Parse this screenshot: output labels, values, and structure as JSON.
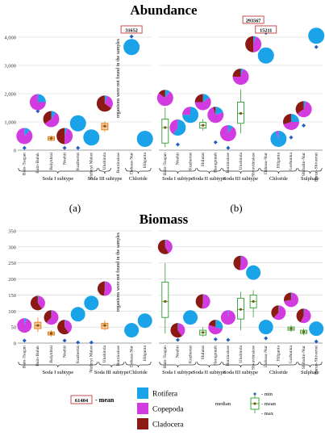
{
  "titles": {
    "top": "Abundance",
    "bottom": "Biomass"
  },
  "panel_labels": {
    "a": "(a)",
    "b": "(b)"
  },
  "note_not_found": "organisms were not found in the samples",
  "legend": {
    "mean_box_value": "61404",
    "mean_label": "- mean",
    "taxa": [
      {
        "name": "Rotifera",
        "color": "#1aa3e8"
      },
      {
        "name": "Copepoda",
        "color": "#d13be0"
      },
      {
        "name": "Cladocera",
        "color": "#8c1a14"
      }
    ],
    "box_legend": {
      "median": "median",
      "min": "- min",
      "mean": "- mean",
      "max": "- max"
    }
  },
  "colors": {
    "rotifera": "#1aa3e8",
    "copepoda": "#d13be0",
    "cladocera": "#8c1a14",
    "box_green": "#2e9e2e",
    "box_orange": "#e07b18",
    "min_marker": "#1f5fbf"
  },
  "chart_data": [
    {
      "id": "abundance-a",
      "type": "scatter",
      "title": "Abundance",
      "ylim": [
        0,
        4000
      ],
      "yticks": [
        "0",
        "1,000",
        "2,000",
        "3,000",
        "4,000"
      ],
      "sites": [
        "Bain-Tsagan",
        "Bain-Bulak",
        "Balykhtai",
        "Nozhii",
        "Kuzhertai",
        "Nizhnyi Maket",
        "Ukshinda",
        "Borzinskoe",
        "Dabasa-Nur",
        "Hilganta"
      ],
      "groups": [
        {
          "name": "Soda I subtype",
          "sites": [
            "Bain-Tsagan",
            "Bain-Bulak",
            "Balykhtai",
            "Nozhii",
            "Kuzhertai",
            "Nizhnyi Maket"
          ]
        },
        {
          "name": "Soda III subtype",
          "sites": [
            "Ukshinda"
          ]
        },
        {
          "name": "Chloride",
          "sites": [
            "Dabasa-Nur",
            "Hilganta"
          ]
        }
      ],
      "pies": [
        {
          "site": "Bain-Tsagan",
          "value": 500,
          "rotifera": 0.12,
          "copepoda": 0.88,
          "cladocera": 0
        },
        {
          "site": "Bain-Bulak",
          "value": 1700,
          "rotifera": 0.25,
          "copepoda": 0.75,
          "cladocera": 0
        },
        {
          "site": "Balykhtai",
          "value": 1100,
          "rotifera": 0.1,
          "copepoda": 0.55,
          "cladocera": 0.35
        },
        {
          "site": "Nozhii",
          "value": 500,
          "rotifera": 0.05,
          "copepoda": 0.45,
          "cladocera": 0.5
        },
        {
          "site": "Kuzhertai",
          "value": 950,
          "rotifera": 1,
          "copepoda": 0,
          "cladocera": 0
        },
        {
          "site": "Nizhnyi Maket",
          "value": 450,
          "rotifera": 1,
          "copepoda": 0,
          "cladocera": 0
        },
        {
          "site": "Ukshinda",
          "value": 1650,
          "rotifera": 0.05,
          "copepoda": 0.3,
          "cladocera": 0.65
        },
        {
          "site": "Dabasa-Nur",
          "value": 3650,
          "rotifera": 1,
          "copepoda": 0,
          "cladocera": 0
        },
        {
          "site": "Hilganta",
          "value": 400,
          "rotifera": 1,
          "copepoda": 0,
          "cladocera": 0
        }
      ],
      "boxes": [
        {
          "site": "Balykhtai",
          "min": 320,
          "q1": 350,
          "median": 420,
          "mean": 420,
          "q3": 480,
          "max": 520
        },
        {
          "site": "Ukshinda",
          "min": 650,
          "q1": 720,
          "median": 850,
          "mean": 850,
          "q3": 950,
          "max": 1020
        }
      ],
      "min_markers": [
        {
          "site": "Bain-Tsagan",
          "value": 80
        },
        {
          "site": "Bain-Bulak",
          "value": 1380
        },
        {
          "site": "Nozhii",
          "value": 80
        },
        {
          "site": "Kuzhertai",
          "value": 80
        },
        {
          "site": "Dabasa-Nur",
          "value": 4020
        }
      ],
      "mean_callouts": [
        {
          "site": "Dabasa-Nur",
          "label": "31652"
        }
      ],
      "missing_site": "Borzinskoe"
    },
    {
      "id": "abundance-b",
      "type": "scatter",
      "title": "Abundance",
      "ylim": [
        0,
        4000
      ],
      "sites": [
        "Bain-Tsagan",
        "Nozhii",
        "Kuzhertai",
        "Shilutai",
        "Haragnuuh",
        "Borzinskoe",
        "Ukshinda",
        "Shvavtinskoe",
        "Dabasa-Nur",
        "Hilganta",
        "Gorbunka",
        "Shihalin-Nur",
        "Barun-Shivertui"
      ],
      "groups": [
        {
          "name": "Soda I subtype",
          "sites": [
            "Bain-Tsagan",
            "Nozhii",
            "Kuzhertai"
          ]
        },
        {
          "name": "Soda II subtype",
          "sites": [
            "Shilutai",
            "Haragnuuh"
          ]
        },
        {
          "name": "Soda III subtype",
          "sites": [
            "Borzinskoe",
            "Ukshinda",
            "Shvavtinskoe"
          ]
        },
        {
          "name": "Chloride",
          "sites": [
            "Dabasa-Nur",
            "Hilganta",
            "Gorbunka"
          ]
        },
        {
          "name": "Sulphate",
          "sites": [
            "Shihalin-Nur",
            "Barun-Shivertui"
          ]
        }
      ],
      "pies": [
        {
          "site": "Bain-Tsagan",
          "value": 1850,
          "rotifera": 0.1,
          "copepoda": 0.75,
          "cladocera": 0.15
        },
        {
          "site": "Nozhii",
          "value": 800,
          "rotifera": 0.6,
          "copepoda": 0.4,
          "cladocera": 0
        },
        {
          "site": "Kuzhertai",
          "value": 1250,
          "rotifera": 0.75,
          "copepoda": 0.25,
          "cladocera": 0
        },
        {
          "site": "Shilutai",
          "value": 1700,
          "rotifera": 0.15,
          "copepoda": 0.6,
          "cladocera": 0.25
        },
        {
          "site": "Haragnuuh",
          "value": 1250,
          "rotifera": 0.2,
          "copepoda": 0.75,
          "cladocera": 0.05
        },
        {
          "site": "Borzinskoe",
          "value": 600,
          "rotifera": 0.1,
          "copepoda": 0.9,
          "cladocera": 0
        },
        {
          "site": "Ukshinda",
          "value": 2600,
          "rotifera": 0.05,
          "copepoda": 0.7,
          "cladocera": 0.25
        },
        {
          "site": "Shvavtinskoe",
          "value": 3750,
          "rotifera": 0.05,
          "copepoda": 0.45,
          "cladocera": 0.5
        },
        {
          "site": "Dabasa-Nur",
          "value": 3350,
          "rotifera": 1,
          "copepoda": 0,
          "cladocera": 0
        },
        {
          "site": "Hilganta",
          "value": 400,
          "rotifera": 0.95,
          "copepoda": 0.05,
          "cladocera": 0
        },
        {
          "site": "Gorbunka",
          "value": 1000,
          "rotifera": 0.25,
          "copepoda": 0.45,
          "cladocera": 0.3
        },
        {
          "site": "Shihalin-Nur",
          "value": 1450,
          "rotifera": 0.05,
          "copepoda": 0.6,
          "cladocera": 0.35
        },
        {
          "site": "Barun-Shivertui",
          "value": 4050,
          "rotifera": 1,
          "copepoda": 0,
          "cladocera": 0
        }
      ],
      "boxes": [
        {
          "site": "Bain-Tsagan",
          "min": 100,
          "q1": 250,
          "median": 800,
          "mean": 800,
          "q3": 1100,
          "max": 1500,
          "color": "#2e9e2e"
        },
        {
          "site": "Shilutai",
          "min": 700,
          "q1": 780,
          "median": 880,
          "mean": 880,
          "q3": 980,
          "max": 1100,
          "color": "#2e9e2e"
        },
        {
          "site": "Ukshinda",
          "min": 600,
          "q1": 950,
          "median": 1300,
          "mean": 1300,
          "q3": 1700,
          "max": 2150,
          "color": "#2e9e2e"
        }
      ],
      "min_markers": [
        {
          "site": "Nozhii",
          "value": 200
        },
        {
          "site": "Haragnuuh",
          "value": 280
        },
        {
          "site": "Borzinskoe",
          "value": 80
        },
        {
          "site": "Dabasa-Nur",
          "value": 4150
        },
        {
          "site": "Gorbunka",
          "value": 450
        },
        {
          "site": "Shihalin-Nur",
          "value": 870
        },
        {
          "site": "Barun-Shivertui",
          "value": 3650
        }
      ],
      "mean_callouts": [
        {
          "site": "Shvavtinskoe",
          "label": "293567"
        },
        {
          "site": "Dabasa-Nur",
          "label": "15211"
        }
      ]
    },
    {
      "id": "biomass-a",
      "type": "scatter",
      "title": "Biomass",
      "ylim": [
        0,
        350
      ],
      "yticks": [
        "0",
        "50",
        "100",
        "150",
        "200",
        "250",
        "300",
        "350"
      ],
      "sites": [
        "Bain-Tsagan",
        "Bain-Bulak",
        "Balykhtai",
        "Nozhii",
        "Kuzhertai",
        "Nizhnyi Maket",
        "Ukshinda",
        "Borzinskoe",
        "Dabasa-Nur",
        "Hilganta"
      ],
      "groups": [
        {
          "name": "Soda I subtype",
          "sites": [
            "Bain-Tsagan",
            "Bain-Bulak",
            "Balykhtai",
            "Nozhii",
            "Kuzhertai",
            "Nizhnyi Maket"
          ]
        },
        {
          "name": "Soda III subtype",
          "sites": [
            "Ukshinda",
            "Borzinskoe"
          ]
        },
        {
          "name": "Chloride",
          "sites": [
            "Dabasa-Nur",
            "Hilganta"
          ]
        }
      ],
      "pies": [
        {
          "site": "Bain-Tsagan",
          "value": 55,
          "rotifera": 0.05,
          "copepoda": 0.95,
          "cladocera": 0
        },
        {
          "site": "Bain-Bulak",
          "value": 125,
          "rotifera": 0.02,
          "copepoda": 0.38,
          "cladocera": 0.6
        },
        {
          "site": "Balykhtai",
          "value": 80,
          "rotifera": 0.02,
          "copepoda": 0.6,
          "cladocera": 0.38
        },
        {
          "site": "Nozhii",
          "value": 50,
          "rotifera": 0.02,
          "copepoda": 0.38,
          "cladocera": 0.6
        },
        {
          "site": "Kuzhertai",
          "value": 90,
          "rotifera": 1,
          "copepoda": 0,
          "cladocera": 0
        },
        {
          "site": "Nizhnyi Maket",
          "value": 125,
          "rotifera": 1,
          "copepoda": 0,
          "cladocera": 0
        },
        {
          "site": "Ukshinda",
          "value": 170,
          "rotifera": 0.02,
          "copepoda": 0.5,
          "cladocera": 0.48
        },
        {
          "site": "Dabasa-Nur",
          "value": 40,
          "rotifera": 1,
          "copepoda": 0,
          "cladocera": 0
        },
        {
          "site": "Hilganta",
          "value": 70,
          "rotifera": 1,
          "copepoda": 0,
          "cladocera": 0
        }
      ],
      "boxes": [
        {
          "site": "Bain-Bulak",
          "min": 35,
          "q1": 45,
          "median": 55,
          "mean": 55,
          "q3": 65,
          "max": 80
        },
        {
          "site": "Balykhtai",
          "min": 20,
          "q1": 25,
          "median": 30,
          "mean": 30,
          "q3": 35,
          "max": 40
        },
        {
          "site": "Ukshinda",
          "min": 40,
          "q1": 45,
          "median": 55,
          "mean": 55,
          "q3": 62,
          "max": 70
        }
      ],
      "min_markers": [
        {
          "site": "Bain-Tsagan",
          "value": 8
        },
        {
          "site": "Nozhii",
          "value": 8
        },
        {
          "site": "Kuzhertai",
          "value": 2
        },
        {
          "site": "Nizhnyi Maket",
          "value": 2
        }
      ],
      "missing_site": "Borzinskoe"
    },
    {
      "id": "biomass-b",
      "type": "scatter",
      "title": "Biomass",
      "ylim": [
        0,
        350
      ],
      "yticks": [
        "0",
        "50",
        "100",
        "150",
        "200",
        "250",
        "300",
        "350"
      ],
      "sites": [
        "Bain-Tsagan",
        "Nozhii",
        "Kuzhertai",
        "Shilutai",
        "Haragnuuh",
        "Borzinskoe",
        "Ukshinda",
        "Shvavtinskoe",
        "Dabasa-Nur",
        "Hilganta",
        "Gorbunka",
        "Shihalin-Nur",
        "Barun-Shivertui"
      ],
      "groups": [
        {
          "name": "Soda I subtype",
          "sites": [
            "Bain-Tsagan",
            "Nozhii",
            "Kuzhertai"
          ]
        },
        {
          "name": "Soda II subtype",
          "sites": [
            "Shilutai",
            "Haragnuuh"
          ]
        },
        {
          "name": "Soda III subtype",
          "sites": [
            "Borzinskoe",
            "Ukshinda",
            "Shvavtinskoe"
          ]
        },
        {
          "name": "Chloride",
          "sites": [
            "Dabasa-Nur",
            "Hilganta",
            "Gorbunka"
          ]
        },
        {
          "name": "Sulphate",
          "sites": [
            "Shihalin-Nur",
            "Barun-Shivertui"
          ]
        }
      ],
      "pies": [
        {
          "site": "Bain-Tsagan",
          "value": 300,
          "rotifera": 0.02,
          "copepoda": 0.4,
          "cladocera": 0.58
        },
        {
          "site": "Nozhii",
          "value": 40,
          "rotifera": 0.02,
          "copepoda": 0.38,
          "cladocera": 0.6
        },
        {
          "site": "Kuzhertai",
          "value": 80,
          "rotifera": 1,
          "copepoda": 0,
          "cladocera": 0
        },
        {
          "site": "Shilutai",
          "value": 130,
          "rotifera": 0.02,
          "copepoda": 0.5,
          "cladocera": 0.48
        },
        {
          "site": "Haragnuuh",
          "value": 50,
          "rotifera": 0.3,
          "copepoda": 0.5,
          "cladocera": 0.2
        },
        {
          "site": "Borzinskoe",
          "value": 80,
          "rotifera": 0.02,
          "copepoda": 0.98,
          "cladocera": 0
        },
        {
          "site": "Ukshinda",
          "value": 250,
          "rotifera": 0.02,
          "copepoda": 0.5,
          "cladocera": 0.48
        },
        {
          "site": "Shvavtinskoe",
          "value": 220,
          "rotifera": 1,
          "copepoda": 0,
          "cladocera": 0
        },
        {
          "site": "Dabasa-Nur",
          "value": 50,
          "rotifera": 1,
          "copepoda": 0,
          "cladocera": 0
        },
        {
          "site": "Hilganta",
          "value": 95,
          "rotifera": 0.02,
          "copepoda": 0.6,
          "cladocera": 0.38
        },
        {
          "site": "Gorbunka",
          "value": 135,
          "rotifera": 0.02,
          "copepoda": 0.7,
          "cladocera": 0.28
        },
        {
          "site": "Shihalin-Nur",
          "value": 85,
          "rotifera": 0.02,
          "copepoda": 0.55,
          "cladocera": 0.43
        },
        {
          "site": "Barun-Shivertui",
          "value": 45,
          "rotifera": 1,
          "copepoda": 0,
          "cladocera": 0
        }
      ],
      "boxes": [
        {
          "site": "Bain-Tsagan",
          "min": 30,
          "q1": 80,
          "median": 130,
          "mean": 130,
          "q3": 190,
          "max": 250,
          "color": "#2e9e2e"
        },
        {
          "site": "Shilutai",
          "min": 20,
          "q1": 25,
          "median": 33,
          "mean": 33,
          "q3": 40,
          "max": 50,
          "color": "#2e9e2e"
        },
        {
          "site": "Ukshinda",
          "min": 40,
          "q1": 75,
          "median": 105,
          "mean": 105,
          "q3": 140,
          "max": 160,
          "color": "#2e9e2e"
        },
        {
          "site": "Shvavtinskoe",
          "min": 80,
          "q1": 110,
          "median": 130,
          "mean": 130,
          "q3": 150,
          "max": 165,
          "color": "#2e9e2e"
        },
        {
          "site": "Gorbunka",
          "min": 35,
          "q1": 40,
          "median": 45,
          "mean": 45,
          "q3": 50,
          "max": 55,
          "color": "#2e9e2e"
        },
        {
          "site": "Shihalin-Nur",
          "min": 25,
          "q1": 30,
          "median": 35,
          "mean": 35,
          "q3": 40,
          "max": 45,
          "color": "#2e9e2e"
        }
      ],
      "min_markers": [
        {
          "site": "Nozhii",
          "value": 10
        },
        {
          "site": "Haragnuuh",
          "value": 12
        },
        {
          "site": "Borzinskoe",
          "value": 10
        },
        {
          "site": "Dabasa-Nur",
          "value": 15
        },
        {
          "site": "Barun-Shivertui",
          "value": 5
        }
      ]
    }
  ]
}
